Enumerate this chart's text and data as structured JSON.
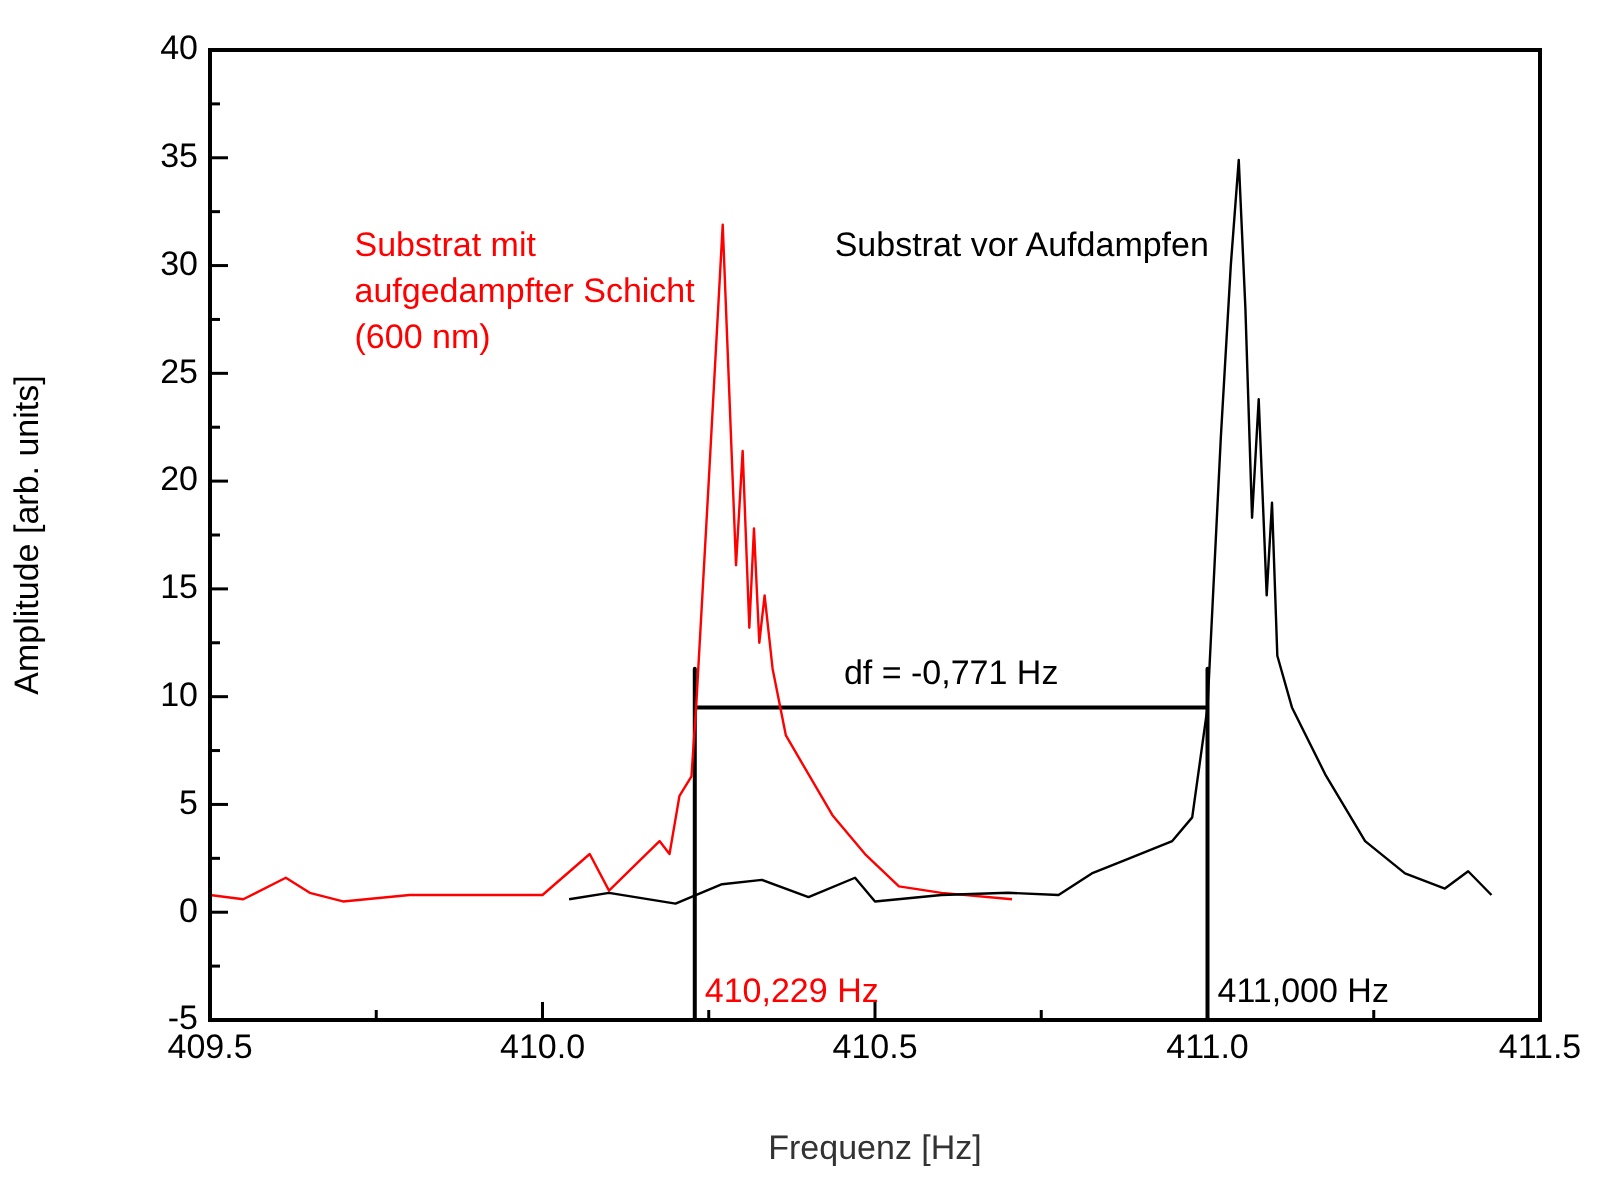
{
  "chart_data": {
    "type": "line",
    "xlabel": "Frequenz [Hz]",
    "ylabel": "Amplitude [arb. units]",
    "xlim": [
      409.5,
      411.5
    ],
    "xticks": [
      {
        "value": 409.5,
        "label": "409.5"
      },
      {
        "value": 409.75,
        "label": null
      },
      {
        "value": 410,
        "label": "410.0"
      },
      {
        "value": 410.25,
        "label": null
      },
      {
        "value": 410.5,
        "label": "410.5"
      },
      {
        "value": 410.75,
        "label": null
      },
      {
        "value": 411,
        "label": "411.0"
      },
      {
        "value": 411.25,
        "label": null
      },
      {
        "value": 411.5,
        "label": "411.5"
      }
    ],
    "ylim": [
      -5,
      40
    ],
    "yticks": [
      -5,
      {
        "value": -2.5,
        "label": null
      },
      0,
      {
        "value": 2.5,
        "label": null
      },
      5,
      {
        "value": 7.5,
        "label": null
      },
      10,
      {
        "value": 12.5,
        "label": null
      },
      15,
      {
        "value": 17.5,
        "label": null
      },
      20,
      {
        "value": 22.5,
        "label": null
      },
      25,
      {
        "value": 27.5,
        "label": null
      },
      30,
      {
        "value": 32.5,
        "label": null
      },
      35,
      {
        "value": 37.5,
        "label": null
      },
      40
    ],
    "grid": false,
    "legend": false,
    "marker": "none",
    "line_style": "solid",
    "series": [
      {
        "name": "Substrat vor Aufdampfen",
        "color": "#000000",
        "x": [
          410.04,
          410.1,
          410.2,
          410.27,
          410.33,
          410.4,
          410.47,
          410.5,
          410.6,
          410.7,
          410.776,
          410.826,
          410.875,
          410.947,
          410.977,
          411.0,
          411.02,
          411.035,
          411.047,
          411.057,
          411.067,
          411.077,
          411.089,
          411.097,
          411.105,
          411.127,
          411.177,
          411.237,
          411.297,
          411.357,
          411.392,
          411.427
        ],
        "values": [
          0.6,
          0.9,
          0.4,
          1.3,
          1.5,
          0.7,
          1.6,
          0.5,
          0.8,
          0.9,
          0.8,
          1.8,
          2.4,
          3.3,
          4.4,
          9.5,
          22,
          30,
          34.9,
          28,
          18.3,
          23.8,
          14.7,
          19,
          11.9,
          9.5,
          6.4,
          3.3,
          1.8,
          1.1,
          1.9,
          0.8
        ]
      },
      {
        "name": "Substrat mit aufgedampfter Schicht (600 nm)",
        "color": "#ff0000",
        "x": [
          409.5,
          409.55,
          409.614,
          409.65,
          409.7,
          409.8,
          409.9,
          410.0,
          410.071,
          410.1,
          410.176,
          410.191,
          410.206,
          410.224,
          410.231,
          410.25,
          410.271,
          410.281,
          410.291,
          410.301,
          410.311,
          410.318,
          410.326,
          410.334,
          410.346,
          410.366,
          410.436,
          410.485,
          410.536,
          410.6,
          410.706
        ],
        "values": [
          0.8,
          0.6,
          1.6,
          0.9,
          0.5,
          0.8,
          0.8,
          0.8,
          2.7,
          1.0,
          3.3,
          2.7,
          5.4,
          6.3,
          9.5,
          20,
          31.9,
          24,
          16.1,
          21.4,
          13.2,
          17.8,
          12.5,
          14.7,
          11.3,
          8.2,
          4.5,
          2.7,
          1.2,
          0.9,
          0.6
        ]
      },
      {
        "color": "#000000",
        "x": [
          410.229,
          410.229,
          410.229,
          411.0,
          411.0,
          411.0
        ],
        "values": [
          -5,
          11.3,
          9.5,
          9.5,
          11.3,
          -5
        ]
      }
    ],
    "annotations": [
      {
        "text": "df = -0,771 Hz",
        "x": 410.6145,
        "y": 9.5
      },
      {
        "text": "410,229 Hz",
        "x": 410.229,
        "y": -5
      },
      {
        "text": "411,000 Hz",
        "x": 411.0,
        "y": -5
      }
    ]
  }
}
